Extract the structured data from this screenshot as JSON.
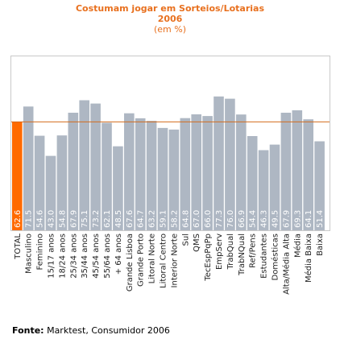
{
  "chart_data": {
    "type": "bar",
    "title": "Costumam jogar em Sorteios/Lotarias",
    "subtitle_year": "2006",
    "subtitle_unit": "(em %)",
    "categories": [
      "TOTAL",
      "Masculino",
      "Feminino",
      "15/17 anos",
      "18/24 anos",
      "25/34 anos",
      "35/44 anos",
      "45/54 anos",
      "55/64 anos",
      "+ 64 anos",
      "Grande Lisboa",
      "Grande Porto",
      "Litoral Norte",
      "Litoral Centro",
      "Interior Norte",
      "Sul",
      "QMS",
      "TecEspPqPp",
      "EmpServ",
      "TrabQual",
      "TrabNQual",
      "Ref/Pens",
      "Estudantes",
      "Domésticas",
      "Alta/Média Alta",
      "Média",
      "Média Baixa",
      "Baixa"
    ],
    "values": [
      62.6,
      71.5,
      54.6,
      43.0,
      54.8,
      67.9,
      75.1,
      73.2,
      62.1,
      48.5,
      67.6,
      64.7,
      63.2,
      59.1,
      58.2,
      64.8,
      67.0,
      66.0,
      77.3,
      76.0,
      66.9,
      54.4,
      46.3,
      49.5,
      67.9,
      69.3,
      64.1,
      51.4
    ],
    "value_labels": [
      "62.6",
      "71.5",
      "54.6",
      "43.0",
      "54.8",
      "67.9",
      "75.1",
      "73.2",
      "62.1",
      "48.5",
      "67.6",
      "64.7",
      "63.2",
      "59.1",
      "58.2",
      "64.8",
      "67.0",
      "66.0",
      "77.3",
      "76.0",
      "66.9",
      "54.4",
      "46.3",
      "49.5",
      "67.9",
      "69.3",
      "64.1",
      "51.4"
    ],
    "highlight_index": 0,
    "reference_line_value": 62.6,
    "ylim": [
      0,
      100
    ],
    "grid": false,
    "colors": {
      "bar": "#aeb7c3",
      "highlight": "#ff6a00",
      "reference": "#d36b1d",
      "title": "#e8701e",
      "label": "#ffffff"
    }
  },
  "footer": {
    "label": "Fonte:",
    "text": " Marktest, Consumidor 2006"
  }
}
